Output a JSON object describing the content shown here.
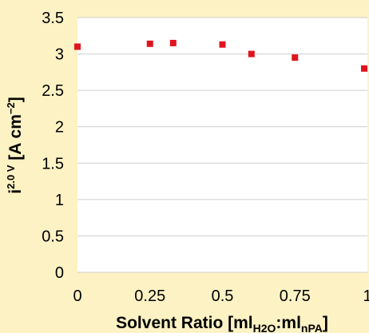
{
  "chart_data": {
    "type": "scatter",
    "xlabel_parts": {
      "main": "Solvent Ratio [ml",
      "sub1": "H2O",
      "mid": ":ml",
      "sub2": "nPA",
      "end": "]"
    },
    "ylabel_parts": {
      "main": "i",
      "sup": "2.0 V",
      "rest": " [A cm",
      "sup2": "−2",
      "end": "]"
    },
    "xlim": [
      0,
      1
    ],
    "ylim": [
      0,
      3.5
    ],
    "x_ticks": [
      "0",
      "0.25",
      "0.5",
      "0.75",
      "1"
    ],
    "y_ticks": [
      "0",
      "0.5",
      "1",
      "1.5",
      "2",
      "2.5",
      "3",
      "3.5"
    ],
    "grid": "horizontal",
    "marker_color": "#e0141e",
    "series": [
      {
        "x": [
          0,
          0.25,
          0.33,
          0.5,
          0.6,
          0.75,
          1.0
        ],
        "y": [
          3.1,
          3.14,
          3.15,
          3.13,
          3.0,
          2.95,
          2.8
        ]
      }
    ]
  }
}
